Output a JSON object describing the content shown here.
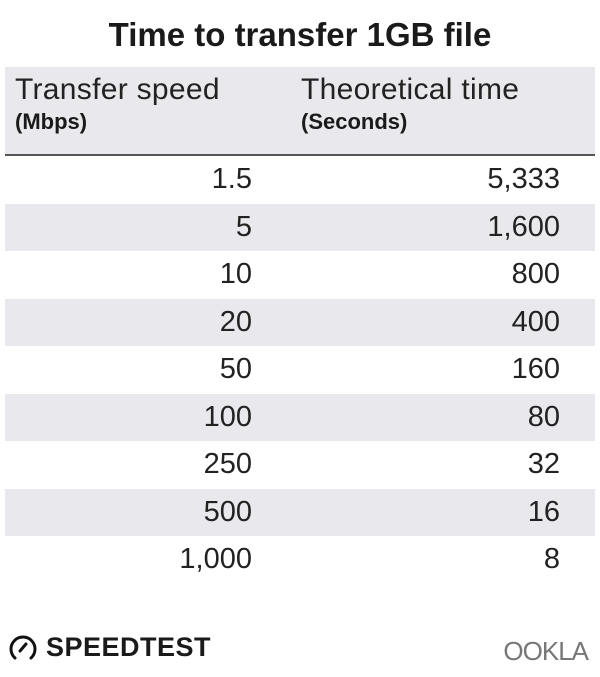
{
  "chart_data": {
    "type": "table",
    "title": "Time to transfer 1GB file",
    "columns": [
      {
        "label": "Transfer speed",
        "unit": "(Mbps)"
      },
      {
        "label": "Theoretical time",
        "unit": "(Seconds)"
      }
    ],
    "rows": [
      [
        "1.5",
        "5,333"
      ],
      [
        "5",
        "1,600"
      ],
      [
        "10",
        "800"
      ],
      [
        "20",
        "400"
      ],
      [
        "50",
        "160"
      ],
      [
        "100",
        "80"
      ],
      [
        "250",
        "32"
      ],
      [
        "500",
        "16"
      ],
      [
        "1,000",
        "8"
      ]
    ],
    "colors": {
      "header_bg": "#e9e8ed",
      "stripe": "#e9e8ed",
      "text": "#222222"
    }
  },
  "footer": {
    "brand": "SPEEDTEST",
    "brand_icon": "gauge-icon",
    "partner": "OOKLA"
  }
}
